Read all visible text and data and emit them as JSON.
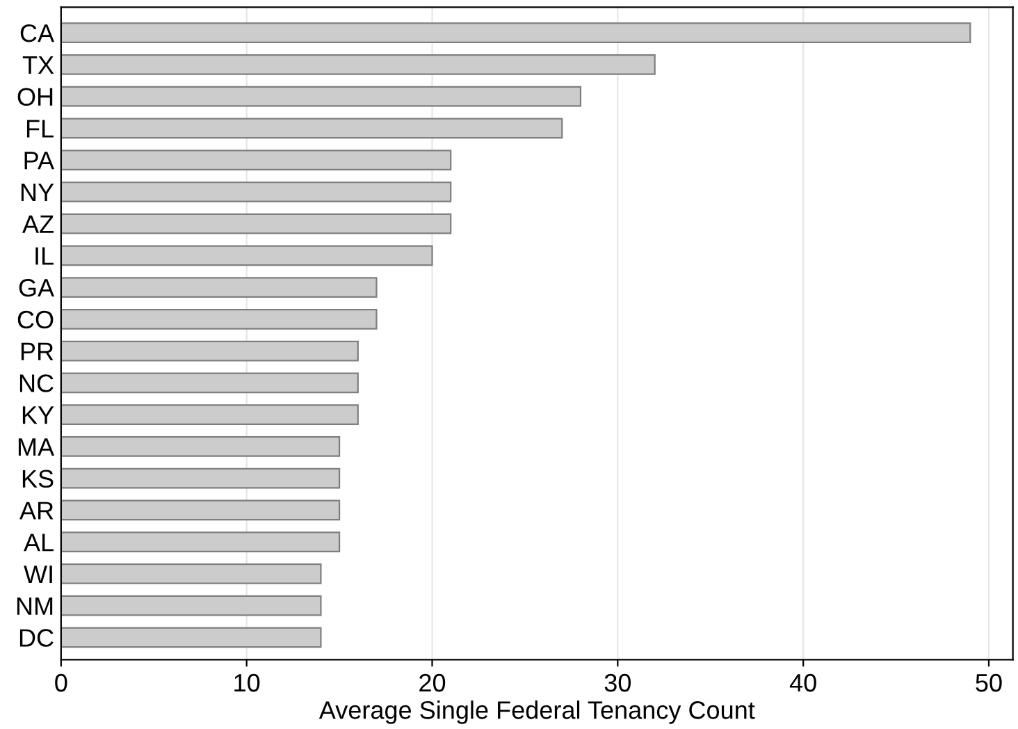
{
  "chart_data": {
    "type": "bar",
    "orientation": "horizontal",
    "xlabel": "Average Single Federal Tenancy Count",
    "categories": [
      "CA",
      "TX",
      "OH",
      "FL",
      "PA",
      "NY",
      "AZ",
      "IL",
      "GA",
      "CO",
      "PR",
      "NC",
      "KY",
      "MA",
      "KS",
      "AR",
      "AL",
      "WI",
      "NM",
      "DC"
    ],
    "values": [
      49,
      32,
      28,
      27,
      21,
      21,
      21,
      20,
      17,
      17,
      16,
      16,
      16,
      15,
      15,
      15,
      15,
      14,
      14,
      14
    ],
    "color": "#cccccc",
    "xlim": [
      0,
      51.3
    ],
    "xticks": [
      0,
      10,
      20,
      30,
      40,
      50
    ],
    "grid": "x"
  }
}
